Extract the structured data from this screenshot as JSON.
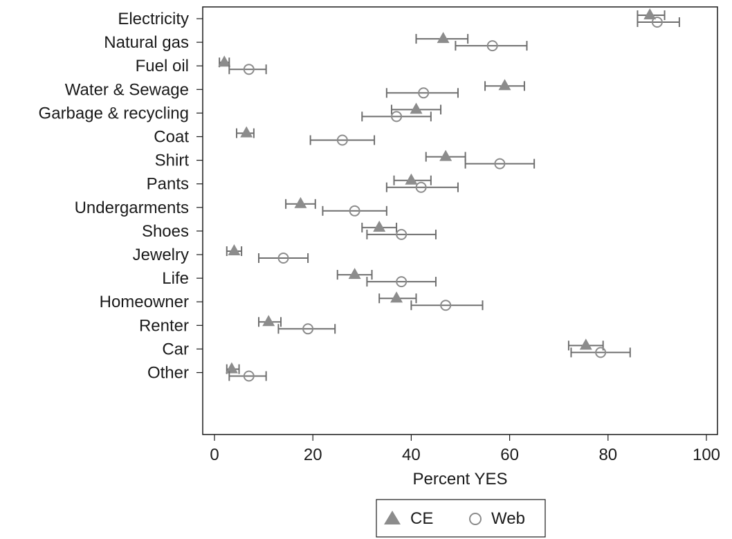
{
  "chart_data": {
    "type": "scatter",
    "subtype": "dot-plot-with-error-bars",
    "xlabel": "Percent YES",
    "xlim": [
      0,
      100
    ],
    "xticks": [
      "0",
      "20",
      "40",
      "60",
      "80",
      "100"
    ],
    "grid": false,
    "legend_position": "bottom",
    "categories": [
      "Electricity",
      "Natural gas",
      "Fuel oil",
      "Water & Sewage",
      "Garbage & recycling",
      "Coat",
      "Shirt",
      "Pants",
      "Undergarments",
      "Shoes",
      "Jewelry",
      "Life",
      "Homeowner",
      "Renter",
      "Car",
      "Other"
    ],
    "groups": [
      [
        "Electricity",
        "Natural gas",
        "Fuel oil",
        "Water & Sewage",
        "Garbage & recycling"
      ],
      [
        "Coat",
        "Shirt",
        "Pants",
        "Undergarments",
        "Shoes",
        "Jewelry"
      ],
      [
        "Life",
        "Homeowner",
        "Renter",
        "Car",
        "Other"
      ]
    ],
    "series": [
      {
        "name": "CE",
        "marker": "filled-triangle",
        "color": "#8c8c8c",
        "points": [
          {
            "category": "Electricity",
            "value": 88.5,
            "low": 86.0,
            "high": 91.5
          },
          {
            "category": "Natural gas",
            "value": 46.5,
            "low": 41.0,
            "high": 51.5
          },
          {
            "category": "Fuel oil",
            "value": 2.0,
            "low": 1.0,
            "high": 3.0
          },
          {
            "category": "Water & Sewage",
            "value": 59.0,
            "low": 55.0,
            "high": 63.0
          },
          {
            "category": "Garbage & recycling",
            "value": 41.0,
            "low": 36.0,
            "high": 46.0
          },
          {
            "category": "Coat",
            "value": 6.5,
            "low": 4.5,
            "high": 8.0
          },
          {
            "category": "Shirt",
            "value": 47.0,
            "low": 43.0,
            "high": 51.0
          },
          {
            "category": "Pants",
            "value": 40.0,
            "low": 36.5,
            "high": 44.0
          },
          {
            "category": "Undergarments",
            "value": 17.5,
            "low": 14.5,
            "high": 20.5
          },
          {
            "category": "Shoes",
            "value": 33.5,
            "low": 30.0,
            "high": 37.0
          },
          {
            "category": "Jewelry",
            "value": 4.0,
            "low": 2.5,
            "high": 5.5
          },
          {
            "category": "Life",
            "value": 28.5,
            "low": 25.0,
            "high": 32.0
          },
          {
            "category": "Homeowner",
            "value": 37.0,
            "low": 33.5,
            "high": 41.0
          },
          {
            "category": "Renter",
            "value": 11.0,
            "low": 9.0,
            "high": 13.5
          },
          {
            "category": "Car",
            "value": 75.5,
            "low": 72.0,
            "high": 79.0
          },
          {
            "category": "Other",
            "value": 3.5,
            "low": 2.5,
            "high": 5.0
          }
        ]
      },
      {
        "name": "Web",
        "marker": "hollow-circle",
        "color": "#8c8c8c",
        "points": [
          {
            "category": "Electricity",
            "value": 90.0,
            "low": 86.0,
            "high": 94.5
          },
          {
            "category": "Natural gas",
            "value": 56.5,
            "low": 49.0,
            "high": 63.5
          },
          {
            "category": "Fuel oil",
            "value": 7.0,
            "low": 3.0,
            "high": 10.5
          },
          {
            "category": "Water & Sewage",
            "value": 42.5,
            "low": 35.0,
            "high": 49.5
          },
          {
            "category": "Garbage & recycling",
            "value": 37.0,
            "low": 30.0,
            "high": 44.0
          },
          {
            "category": "Coat",
            "value": 26.0,
            "low": 19.5,
            "high": 32.5
          },
          {
            "category": "Shirt",
            "value": 58.0,
            "low": 51.0,
            "high": 65.0
          },
          {
            "category": "Pants",
            "value": 42.0,
            "low": 35.0,
            "high": 49.5
          },
          {
            "category": "Undergarments",
            "value": 28.5,
            "low": 22.0,
            "high": 35.0
          },
          {
            "category": "Shoes",
            "value": 38.0,
            "low": 31.0,
            "high": 45.0
          },
          {
            "category": "Jewelry",
            "value": 14.0,
            "low": 9.0,
            "high": 19.0
          },
          {
            "category": "Life",
            "value": 38.0,
            "low": 31.0,
            "high": 45.0
          },
          {
            "category": "Homeowner",
            "value": 47.0,
            "low": 40.0,
            "high": 54.5
          },
          {
            "category": "Renter",
            "value": 19.0,
            "low": 13.0,
            "high": 24.5
          },
          {
            "category": "Car",
            "value": 78.5,
            "low": 72.5,
            "high": 84.5
          },
          {
            "category": "Other",
            "value": 7.0,
            "low": 3.0,
            "high": 10.5
          }
        ]
      }
    ]
  },
  "legend": {
    "items": [
      {
        "label": "CE",
        "icon": "filled-triangle-icon"
      },
      {
        "label": "Web",
        "icon": "hollow-circle-icon"
      }
    ]
  }
}
